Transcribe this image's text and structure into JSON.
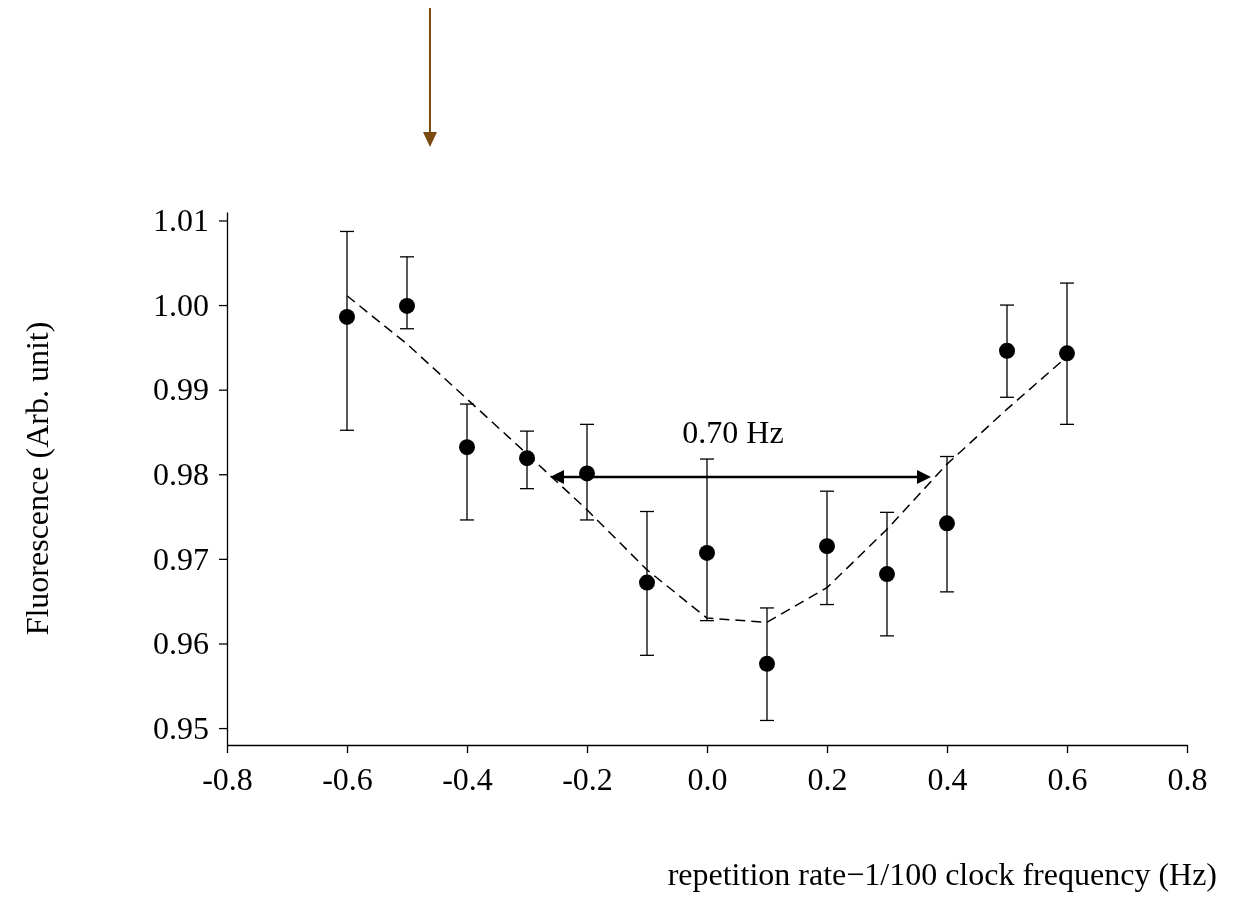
{
  "chart_data": {
    "type": "scatter",
    "xlabel": "repetition rate−1/100 clock frequency (Hz)",
    "ylabel": "Fluorescence (Arb. unit)",
    "xlim": [
      -0.8,
      0.8
    ],
    "xticks": [
      -0.8,
      -0.6,
      -0.4,
      -0.2,
      {
        "value": 0,
        "label": "0.0"
      },
      0.2,
      0.4,
      0.6,
      0.8
    ],
    "ylim": [
      0.948,
      1.011
    ],
    "yticks": [
      1.01,
      {
        "value": 1,
        "label": "1.00"
      },
      0.99,
      0.98,
      0.97,
      0.96,
      0.95
    ],
    "grid": false,
    "series": [
      {
        "color": "#000000",
        "marker": "circle",
        "x": [
          -0.6,
          -0.5,
          -0.4,
          -0.3,
          -0.2,
          -0.1,
          0,
          0.1,
          0.2,
          0.3,
          0.4,
          0.5,
          0.6
        ],
        "values": [
          0.9986,
          0.9999,
          0.9832,
          0.9819,
          0.9801,
          0.9672,
          0.9707,
          0.9576,
          0.9715,
          0.9682,
          0.9742,
          0.9946,
          0.9943
        ],
        "errors": [
          [
            0.9852,
            1.0087
          ],
          [
            0.9972,
            1.0057
          ],
          [
            0.9746,
            0.9883
          ],
          [
            0.9783,
            0.9851
          ],
          [
            0.9746,
            0.9859
          ],
          [
            0.9586,
            0.9756
          ],
          [
            0.9627,
            0.9818
          ],
          [
            0.9509,
            0.9642
          ],
          [
            0.9646,
            0.978
          ],
          [
            0.9609,
            0.9755
          ],
          [
            0.9661,
            0.9821
          ],
          [
            0.9891,
            1.0
          ],
          [
            0.9859,
            1.0026
          ]
        ]
      },
      {
        "type": "line",
        "color": "#000000",
        "marker": "none",
        "line_style": "dashed",
        "x": [
          -0.6,
          -0.5,
          -0.4,
          -0.3,
          -0.2,
          -0.1,
          0,
          0.1,
          0.2,
          0.3,
          0.4,
          0.5,
          0.6
        ],
        "values": [
          1.0011,
          0.9954,
          0.9889,
          0.9824,
          0.9758,
          0.9687,
          0.963,
          0.9625,
          0.9666,
          0.9735,
          0.9812,
          0.9877,
          0.9939
        ]
      }
    ],
    "annotations": [
      "0.70 Hz"
    ]
  }
}
